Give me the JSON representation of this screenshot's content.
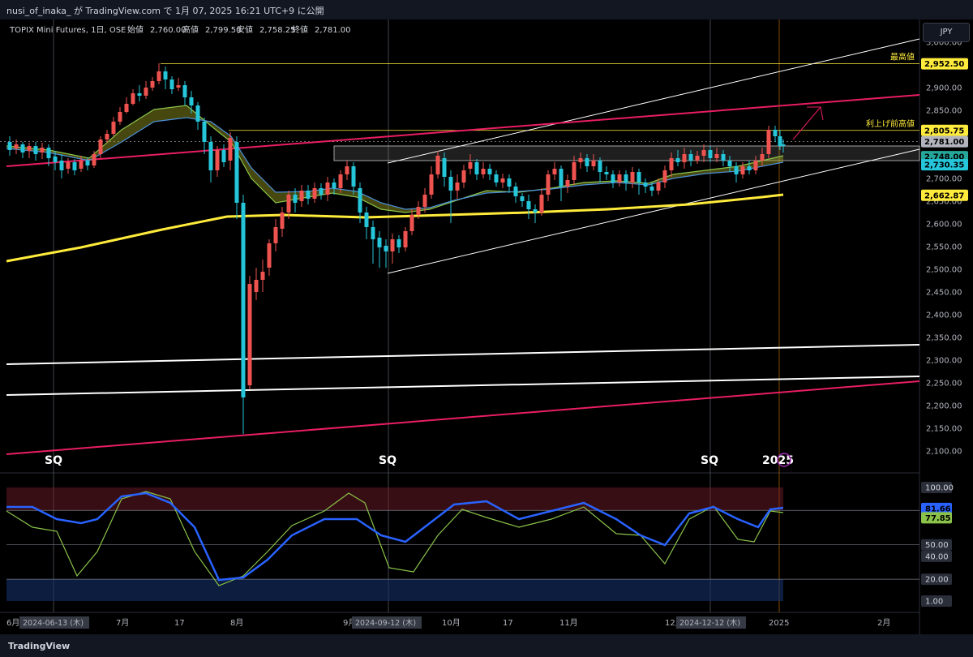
{
  "header": {
    "publish_text": "nusi_of_inaka_ が TradingView.com で 1月 07, 2025 16:21 UTC+9 に公開"
  },
  "legend": {
    "symbol": "TOPIX Mini Futures, 1日, OSE",
    "open_label": "始値",
    "open": "2,760.00",
    "high_label": "高値",
    "high": "2,799.50",
    "low_label": "安値",
    "low": "2,758.25",
    "close_label": "終値",
    "close": "2,781.00"
  },
  "currency": "JPY",
  "footer": {
    "logo": "TradingView"
  },
  "colors": {
    "up": "#ef5350",
    "down": "#26c6da",
    "ma200": "#ffeb3b",
    "channel": "#ffffff",
    "trendline": "#e91e63",
    "stoch_k": "#2962ff",
    "stoch_d": "#8bc34a"
  },
  "chart_data": [
    {
      "type": "candlestick",
      "title": "TOPIX Mini Futures, 1日, OSE",
      "ylim": [
        2075,
        3025
      ],
      "y_ticks": [
        "2,100.00",
        "2,150.00",
        "2,200.00",
        "2,250.00",
        "2,300.00",
        "2,350.00",
        "2,400.00",
        "2,450.00",
        "2,500.00",
        "2,550.00",
        "2,600.00",
        "2,650.00",
        "2,700.00",
        "2,750.00",
        "2,800.00",
        "2,850.00",
        "2,900.00",
        "2,950.00",
        "3,000.00"
      ],
      "x_ticks": [
        "6月",
        "7月",
        "17",
        "8月",
        "9月",
        "10月",
        "17",
        "11月",
        "12月",
        "2025",
        "2月"
      ],
      "x_date_labels": [
        "2024-06-13 (木)",
        "2024-09-12 (木)",
        "2024-12-12 (木)"
      ],
      "sq_labels": [
        "SQ",
        "SQ",
        "SQ"
      ],
      "price_labels": [
        {
          "value": 2952.5,
          "text": "2,952.50",
          "color": "#ffeb3b"
        },
        {
          "value": 2805.75,
          "text": "2,805.75",
          "color": "#ffeb3b"
        },
        {
          "value": 2781.0,
          "text": "2,781.00",
          "color": "#b2b5be"
        },
        {
          "value": 2748.0,
          "text": "2,748.00",
          "color": "#26a69a"
        },
        {
          "value": 2730.35,
          "text": "2,730.35",
          "color": "#26c6da"
        },
        {
          "value": 2662.87,
          "text": "2,662.87",
          "color": "#ffeb3b"
        }
      ],
      "annotations": [
        {
          "text": "最高値",
          "value": 2952.5
        },
        {
          "text": "利上げ前高値",
          "value": 2805.75
        }
      ],
      "key_points": [
        {
          "date": "2024-06-03",
          "close": 2760
        },
        {
          "date": "2024-07-11",
          "high": 2952.5
        },
        {
          "date": "2024-08-05",
          "low": 2140
        },
        {
          "date": "2024-09-11",
          "low": 2495
        },
        {
          "date": "2024-12-27",
          "high": 2815
        },
        {
          "date": "2025-01-07",
          "close": 2781
        }
      ]
    },
    {
      "type": "line",
      "title": "Stochastic",
      "ylim": [
        0,
        110
      ],
      "y_ticks": [
        "1.00",
        "20.00",
        "40.00",
        "50.00",
        "80.00",
        "100.00"
      ],
      "series": [
        {
          "last": 81.66,
          "text": "81.66",
          "color": "#2962ff"
        },
        {
          "last": 77.85,
          "text": "77.85",
          "color": "#8bc34a"
        }
      ]
    }
  ]
}
